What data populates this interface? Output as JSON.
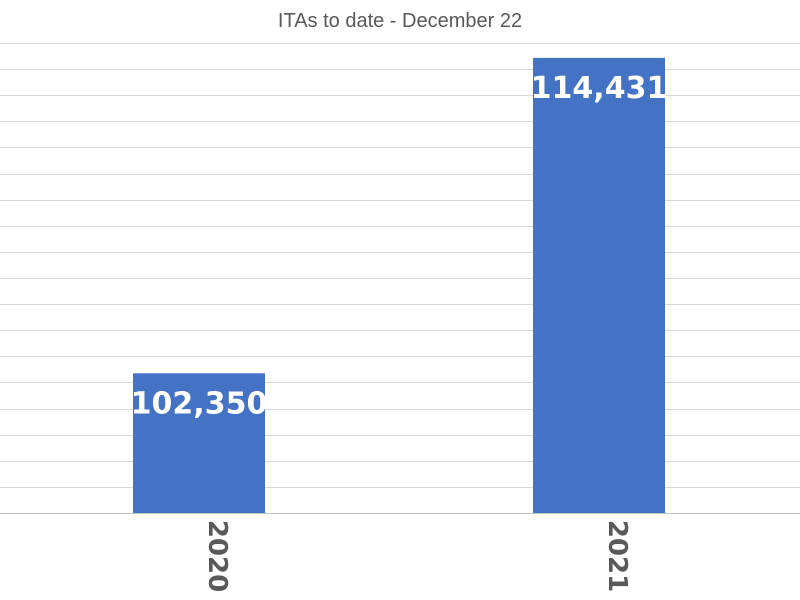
{
  "chart_data": {
    "type": "bar",
    "title": "ITAs to date - December 22",
    "categories": [
      "2020",
      "2021"
    ],
    "values": [
      102350,
      114431
    ],
    "value_labels": [
      "102,350",
      "114,431"
    ],
    "ylim": [
      97000,
      115000
    ],
    "ytick_step": 1000,
    "grid": true,
    "legend": "none",
    "colors": {
      "bar": "#4472c4",
      "label": "#ffffff",
      "grid": "#d9d9d9",
      "text": "#595959"
    }
  }
}
